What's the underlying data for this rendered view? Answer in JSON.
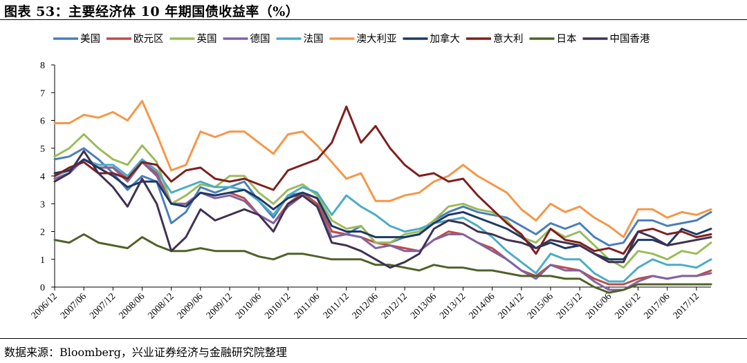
{
  "header": {
    "title": "图表 53：主要经济体 10 年期国债收益率（%）"
  },
  "footer": {
    "source": "数据来源：Bloomberg，兴业证券经济与金融研究院整理"
  },
  "chart_data": {
    "type": "line",
    "title": "图表 53：主要经济体 10 年期国债收益率（%）",
    "xlabel": "",
    "ylabel": "",
    "ylim": [
      0,
      8
    ],
    "yticks": [
      0,
      1,
      2,
      3,
      4,
      5,
      6,
      7,
      8
    ],
    "grid": false,
    "legend": "top",
    "x": [
      "2006/12",
      "2007/03",
      "2007/06",
      "2007/09",
      "2007/12",
      "2008/03",
      "2008/06",
      "2008/09",
      "2008/12",
      "2009/03",
      "2009/06",
      "2009/09",
      "2009/12",
      "2010/03",
      "2010/06",
      "2010/09",
      "2010/12",
      "2011/03",
      "2011/06",
      "2011/09",
      "2011/12",
      "2012/03",
      "2012/06",
      "2012/09",
      "2012/12",
      "2013/03",
      "2013/06",
      "2013/09",
      "2013/12",
      "2014/03",
      "2014/06",
      "2014/09",
      "2014/12",
      "2015/03",
      "2015/06",
      "2015/09",
      "2015/12",
      "2016/03",
      "2016/06",
      "2016/09",
      "2016/12",
      "2017/03",
      "2017/06",
      "2017/09",
      "2017/12",
      "2018/01"
    ],
    "xticks": [
      "2006/12",
      "2007/06",
      "2007/12",
      "2008/06",
      "2008/12",
      "2009/06",
      "2009/12",
      "2010/06",
      "2010/12",
      "2011/06",
      "2011/12",
      "2012/06",
      "2012/12",
      "2013/06",
      "2013/12",
      "2014/06",
      "2014/12",
      "2015/06",
      "2015/12",
      "2016/06",
      "2016/12",
      "2017/06",
      "2017/12"
    ],
    "series": [
      {
        "name": "美国",
        "color": "#4a7ebb",
        "values": [
          4.6,
          4.7,
          5.0,
          4.6,
          4.1,
          3.5,
          4.0,
          3.8,
          2.3,
          2.7,
          3.6,
          3.4,
          3.6,
          3.8,
          3.1,
          2.5,
          3.3,
          3.4,
          3.2,
          2.0,
          1.9,
          2.2,
          1.6,
          1.6,
          1.8,
          1.9,
          2.4,
          2.7,
          2.9,
          2.7,
          2.6,
          2.5,
          2.2,
          1.9,
          2.3,
          2.1,
          2.3,
          1.8,
          1.5,
          1.6,
          2.4,
          2.4,
          2.2,
          2.3,
          2.4,
          2.7
        ]
      },
      {
        "name": "欧元区",
        "color": "#be4b48",
        "values": [
          3.9,
          4.1,
          4.6,
          4.3,
          4.3,
          3.9,
          4.5,
          4.1,
          3.0,
          3.0,
          3.4,
          3.3,
          3.4,
          3.2,
          2.6,
          2.3,
          3.0,
          3.4,
          3.0,
          2.0,
          1.9,
          1.8,
          1.6,
          1.5,
          1.4,
          1.3,
          1.7,
          2.0,
          1.9,
          1.6,
          1.4,
          1.0,
          0.6,
          0.4,
          0.8,
          0.7,
          0.6,
          0.3,
          0.1,
          0.1,
          0.3,
          0.4,
          0.3,
          0.4,
          0.4,
          0.6
        ]
      },
      {
        "name": "英国",
        "color": "#9bbb59",
        "values": [
          4.7,
          5.0,
          5.5,
          5.0,
          4.6,
          4.4,
          5.1,
          4.5,
          3.0,
          3.3,
          3.7,
          3.6,
          4.0,
          4.0,
          3.4,
          3.0,
          3.5,
          3.7,
          3.3,
          2.4,
          2.1,
          2.2,
          1.6,
          1.6,
          1.9,
          2.0,
          2.4,
          2.9,
          3.0,
          2.8,
          2.7,
          2.4,
          1.8,
          1.6,
          2.1,
          1.8,
          2.0,
          1.5,
          1.0,
          0.7,
          1.3,
          1.2,
          1.0,
          1.3,
          1.2,
          1.6
        ]
      },
      {
        "name": "德国",
        "color": "#8064a2",
        "values": [
          3.9,
          4.1,
          4.6,
          4.3,
          4.3,
          3.8,
          4.5,
          4.0,
          3.0,
          3.0,
          3.4,
          3.2,
          3.3,
          3.1,
          2.6,
          2.3,
          2.9,
          3.3,
          2.9,
          1.8,
          1.9,
          1.8,
          1.4,
          1.5,
          1.3,
          1.3,
          1.7,
          1.9,
          1.9,
          1.6,
          1.3,
          1.0,
          0.6,
          0.3,
          0.8,
          0.6,
          0.6,
          0.2,
          -0.1,
          -0.1,
          0.2,
          0.4,
          0.3,
          0.4,
          0.4,
          0.5
        ]
      },
      {
        "name": "法国",
        "color": "#4bacc6",
        "values": [
          4.0,
          4.2,
          4.6,
          4.4,
          4.4,
          4.0,
          4.6,
          4.2,
          3.4,
          3.6,
          3.8,
          3.6,
          3.6,
          3.5,
          3.1,
          2.6,
          3.3,
          3.6,
          3.4,
          2.6,
          3.3,
          2.9,
          2.6,
          2.2,
          2.0,
          2.1,
          2.3,
          2.4,
          2.5,
          2.2,
          1.8,
          1.3,
          0.9,
          0.5,
          1.2,
          1.0,
          1.0,
          0.5,
          0.2,
          0.2,
          0.7,
          1.0,
          0.8,
          0.8,
          0.7,
          1.0
        ]
      },
      {
        "name": "澳大利亚",
        "color": "#f79646",
        "values": [
          5.9,
          5.9,
          6.2,
          6.1,
          6.3,
          6.0,
          6.7,
          5.5,
          4.2,
          4.4,
          5.6,
          5.4,
          5.6,
          5.6,
          5.2,
          4.8,
          5.5,
          5.6,
          5.1,
          4.5,
          3.9,
          4.1,
          3.1,
          3.1,
          3.3,
          3.4,
          3.8,
          4.0,
          4.4,
          4.0,
          3.7,
          3.4,
          2.8,
          2.4,
          3.0,
          2.7,
          2.9,
          2.5,
          2.2,
          1.8,
          2.8,
          2.8,
          2.5,
          2.7,
          2.6,
          2.8
        ]
      },
      {
        "name": "加拿大",
        "color": "#1f3864",
        "values": [
          4.1,
          4.2,
          4.6,
          4.3,
          4.0,
          3.6,
          3.8,
          3.8,
          3.0,
          2.9,
          3.4,
          3.3,
          3.4,
          3.5,
          3.2,
          2.8,
          3.2,
          3.4,
          3.2,
          2.2,
          2.0,
          2.0,
          1.8,
          1.8,
          1.8,
          1.9,
          2.3,
          2.6,
          2.7,
          2.5,
          2.3,
          2.1,
          1.8,
          1.4,
          1.6,
          1.4,
          1.5,
          1.2,
          1.0,
          1.0,
          1.7,
          1.7,
          1.5,
          2.1,
          1.9,
          2.1
        ]
      },
      {
        "name": "意大利",
        "color": "#7f1f1f",
        "values": [
          4.0,
          4.3,
          4.5,
          4.1,
          4.1,
          3.9,
          4.5,
          4.4,
          3.8,
          4.2,
          4.3,
          3.9,
          3.8,
          3.9,
          3.7,
          3.5,
          4.2,
          4.4,
          4.6,
          5.2,
          6.5,
          5.2,
          5.8,
          5.0,
          4.4,
          4.0,
          4.1,
          3.8,
          3.9,
          3.3,
          2.8,
          2.3,
          1.9,
          1.2,
          2.1,
          1.7,
          1.6,
          1.3,
          1.4,
          1.2,
          2.0,
          2.1,
          1.9,
          2.0,
          1.8,
          1.9
        ]
      },
      {
        "name": "日本",
        "color": "#4f6228",
        "values": [
          1.7,
          1.6,
          1.9,
          1.6,
          1.5,
          1.4,
          1.8,
          1.5,
          1.3,
          1.3,
          1.4,
          1.3,
          1.3,
          1.3,
          1.1,
          1.0,
          1.2,
          1.2,
          1.1,
          1.0,
          1.0,
          1.0,
          0.8,
          0.8,
          0.7,
          0.6,
          0.8,
          0.7,
          0.7,
          0.6,
          0.6,
          0.5,
          0.4,
          0.4,
          0.4,
          0.3,
          0.3,
          0.0,
          -0.2,
          -0.1,
          0.1,
          0.1,
          0.1,
          0.1,
          0.1,
          0.1
        ]
      },
      {
        "name": "中国香港",
        "color": "#403152",
        "values": [
          3.8,
          4.1,
          4.9,
          4.1,
          3.6,
          2.9,
          3.9,
          3.0,
          1.3,
          1.8,
          2.8,
          2.4,
          2.6,
          2.8,
          2.6,
          2.0,
          3.0,
          3.3,
          2.9,
          1.6,
          1.5,
          1.3,
          1.0,
          0.7,
          0.9,
          1.2,
          2.1,
          2.4,
          2.3,
          2.0,
          1.9,
          1.7,
          1.6,
          1.4,
          1.7,
          1.6,
          1.5,
          1.2,
          0.9,
          0.9,
          2.0,
          1.8,
          1.5,
          1.6,
          1.7,
          1.8
        ]
      }
    ]
  }
}
